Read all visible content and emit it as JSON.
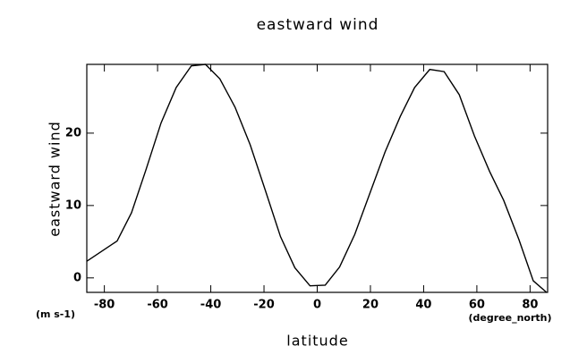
{
  "chart_data": {
    "type": "line",
    "title": "eastward wind",
    "x_label": "latitude",
    "y_label": "eastward wind",
    "y_unit": "(m s-1)",
    "x_unit": "(degree_north)",
    "x": [
      -86.6,
      -75.2,
      -69.8,
      -64.4,
      -58.7,
      -53.0,
      -47.3,
      -42.0,
      -36.6,
      -30.9,
      -25.2,
      -19.5,
      -13.8,
      -8.4,
      -2.7,
      3.0,
      8.4,
      14.1,
      19.8,
      25.5,
      31.2,
      36.6,
      42.3,
      47.7,
      53.4,
      59.1,
      64.8,
      70.1,
      75.8,
      81.2,
      86.2
    ],
    "series": [
      {
        "name": "eastward wind",
        "color": "#000000",
        "values": [
          2.3,
          5.1,
          9.0,
          14.9,
          21.4,
          26.3,
          29.3,
          29.5,
          27.5,
          23.6,
          18.4,
          12.1,
          5.7,
          1.4,
          -1.1,
          -1.0,
          1.5,
          6.0,
          11.7,
          17.4,
          22.3,
          26.3,
          28.8,
          28.5,
          25.3,
          19.6,
          14.7,
          10.7,
          5.3,
          -0.4,
          -2.0
        ]
      }
    ],
    "xlim": [
      -86.6,
      86.6
    ],
    "ylim": [
      -2.0,
      29.5
    ],
    "xticks": [
      -80,
      -60,
      -40,
      -20,
      0,
      20,
      40,
      60,
      80
    ],
    "yticks": [
      0,
      10,
      20
    ]
  }
}
